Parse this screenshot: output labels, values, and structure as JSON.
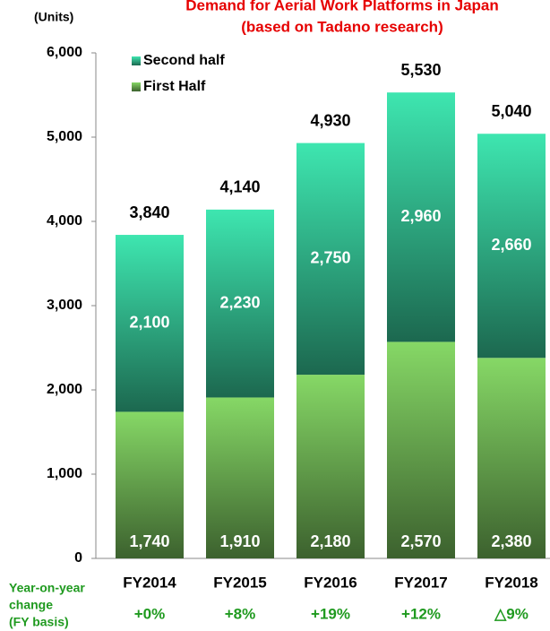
{
  "chart_data": {
    "type": "bar",
    "stacked": true,
    "title": "Demand for Aerial Work Platforms in Japan",
    "subtitle": "(based on Tadano research)",
    "y_label": "(Units)",
    "categories": [
      "FY2014",
      "FY2015",
      "FY2016",
      "FY2017",
      "FY2018"
    ],
    "series": [
      {
        "name": "First Half",
        "color": "#86d866",
        "values": [
          1740,
          1910,
          2180,
          2570,
          2380
        ],
        "value_labels": [
          "1,740",
          "1,910",
          "2,180",
          "2,570",
          "2,380"
        ]
      },
      {
        "name": "Second half",
        "color": "#3ee6b0",
        "values": [
          2100,
          2230,
          2750,
          2960,
          2660
        ],
        "value_labels": [
          "2,100",
          "2,230",
          "2,750",
          "2,960",
          "2,660"
        ]
      }
    ],
    "totals": [
      3840,
      4140,
      4930,
      5530,
      5040
    ],
    "total_labels": [
      "3,840",
      "4,140",
      "4,930",
      "5,530",
      "5,040"
    ],
    "ylim": [
      0,
      6000
    ],
    "yticks": [
      0,
      {
        "value": 1000,
        "label": "1,000"
      },
      {
        "value": 2000,
        "label": "2,000"
      },
      {
        "value": 3000,
        "label": "3,000"
      },
      {
        "value": 4000,
        "label": "4,000"
      },
      {
        "value": 5000,
        "label": "5,000"
      },
      {
        "value": 6000,
        "label": "6,000"
      }
    ],
    "yoy_label": [
      "Year-on-year",
      "change",
      "(FY basis)"
    ],
    "yoy_changes": [
      "+0%",
      "+8%",
      "+19%",
      "+12%",
      "△9%"
    ],
    "legend": "top-left"
  }
}
